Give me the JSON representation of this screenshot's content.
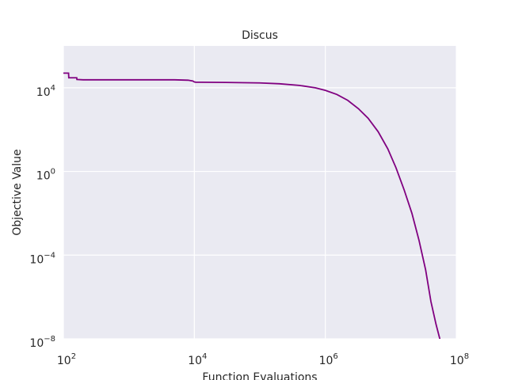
{
  "chart_data": {
    "type": "line",
    "title": "Discus",
    "xlabel": "Function Evaluations",
    "ylabel": "Objective Value",
    "xscale": "log",
    "yscale": "log",
    "xlim": [
      100,
      100000000
    ],
    "ylim": [
      1e-08,
      1000000
    ],
    "grid": true,
    "colors": {
      "background": "#eaeaf2",
      "grid": "#ffffff",
      "line": "#800080"
    },
    "x_ticks": [
      {
        "base": "10",
        "exp": "2",
        "value": 100
      },
      {
        "base": "10",
        "exp": "4",
        "value": 10000
      },
      {
        "base": "10",
        "exp": "6",
        "value": 1000000
      },
      {
        "base": "10",
        "exp": "8",
        "value": 100000000
      }
    ],
    "y_ticks": [
      {
        "base": "10",
        "exp": "−8",
        "value": 1e-08
      },
      {
        "base": "10",
        "exp": "−4",
        "value": 0.0001
      },
      {
        "base": "10",
        "exp": "0",
        "value": 1
      },
      {
        "base": "10",
        "exp": "4",
        "value": 10000
      }
    ],
    "series": [
      {
        "x": [
          100,
          120,
          121,
          160,
          161,
          200,
          1000,
          5000,
          8000,
          9500,
          10000,
          10500,
          30000,
          100000,
          200000,
          400000,
          700000,
          1000000,
          1500000,
          2200000,
          3200000,
          4500000,
          6400000,
          9000000,
          12000000,
          16000000,
          21000000,
          27000000,
          34000000,
          41000000,
          49000000,
          56000000,
          64000000
        ],
        "y": [
          50000,
          50000,
          30000,
          30000,
          25000,
          24000,
          24000,
          24000,
          23000,
          21000,
          19000,
          18500,
          18000,
          17000,
          15500,
          13000,
          10000,
          7500,
          4800,
          2500,
          1000,
          350,
          80,
          12,
          1.5,
          0.13,
          0.01,
          0.0005,
          2e-05,
          6e-07,
          5e-08,
          1e-08,
          2e-09
        ]
      }
    ]
  }
}
